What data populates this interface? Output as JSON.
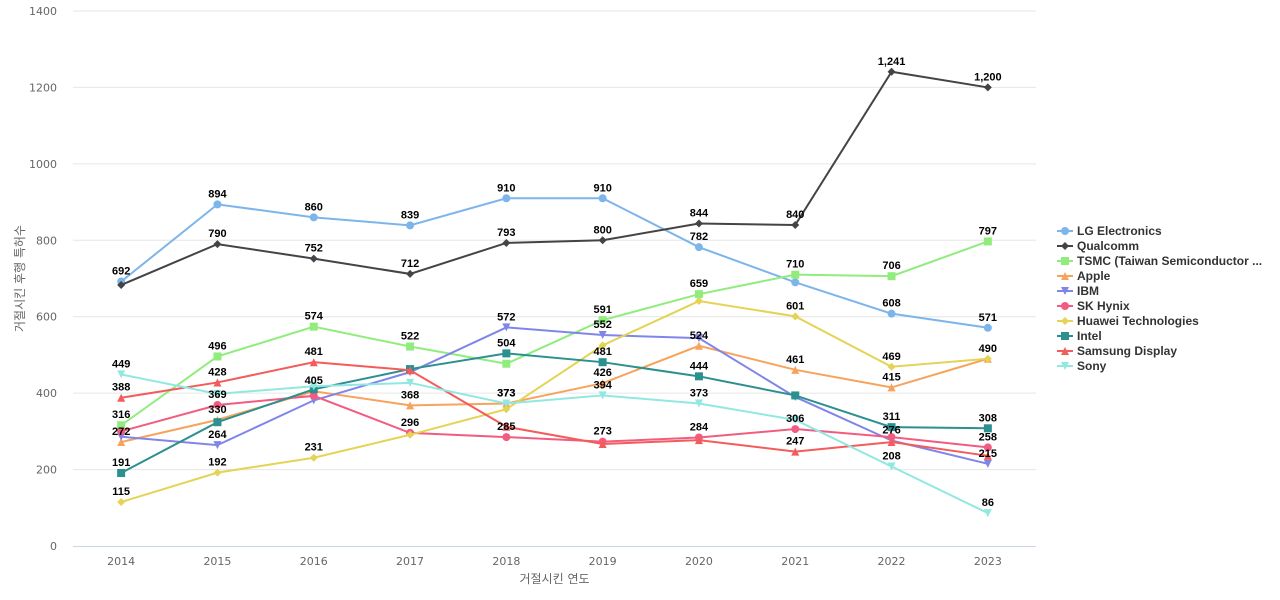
{
  "chart_data": {
    "type": "line",
    "xlabel": "거절시킨 연도",
    "ylabel": "거절시킨 후행 특허수",
    "ylim": [
      0,
      1400
    ],
    "yticks": [
      0,
      200,
      400,
      600,
      800,
      1000,
      1200,
      1400
    ],
    "categories": [
      "2014",
      "2015",
      "2016",
      "2017",
      "2018",
      "2019",
      "2020",
      "2021",
      "2022",
      "2023"
    ],
    "grid": true,
    "legend_position": "right",
    "series": [
      {
        "name": "LG Electronics",
        "color": "#7cb5ec",
        "marker": "circle",
        "values": [
          692,
          894,
          860,
          839,
          910,
          910,
          782,
          690,
          608,
          571
        ],
        "labels": [
          true,
          true,
          true,
          true,
          true,
          true,
          true,
          false,
          true,
          true
        ]
      },
      {
        "name": "Qualcomm",
        "color": "#434348",
        "marker": "diamond",
        "values": [
          683,
          790,
          752,
          712,
          793,
          800,
          844,
          840,
          1241,
          1200
        ],
        "labels": [
          false,
          true,
          true,
          true,
          true,
          true,
          true,
          true,
          true,
          true
        ]
      },
      {
        "name": "TSMC (Taiwan Semiconductor ...",
        "color": "#90ed7d",
        "marker": "square",
        "values": [
          316,
          496,
          574,
          522,
          477,
          591,
          659,
          710,
          706,
          797
        ],
        "labels": [
          true,
          true,
          true,
          true,
          false,
          true,
          true,
          true,
          true,
          true
        ]
      },
      {
        "name": "Apple",
        "color": "#f7a35c",
        "marker": "triangle",
        "values": [
          272,
          330,
          405,
          368,
          373,
          426,
          524,
          461,
          415,
          490
        ],
        "labels": [
          true,
          true,
          true,
          true,
          true,
          true,
          true,
          true,
          true,
          false
        ]
      },
      {
        "name": "IBM",
        "color": "#8085e9",
        "marker": "triangle-down",
        "values": [
          286,
          264,
          381,
          455,
          572,
          552,
          544,
          390,
          276,
          215
        ],
        "labels": [
          false,
          true,
          false,
          false,
          true,
          true,
          false,
          false,
          true,
          true
        ]
      },
      {
        "name": "SK Hynix",
        "color": "#f15c80",
        "marker": "circle",
        "values": [
          300,
          369,
          393,
          296,
          285,
          273,
          284,
          306,
          285,
          258
        ],
        "labels": [
          false,
          true,
          false,
          true,
          true,
          true,
          true,
          true,
          false,
          true
        ]
      },
      {
        "name": "Huawei Technologies",
        "color": "#e4d354",
        "marker": "diamond",
        "values": [
          115,
          192,
          231,
          291,
          358,
          525,
          641,
          601,
          469,
          490
        ],
        "labels": [
          true,
          true,
          true,
          false,
          false,
          false,
          false,
          true,
          true,
          true
        ]
      },
      {
        "name": "Intel",
        "color": "#2b908f",
        "marker": "square",
        "values": [
          191,
          324,
          410,
          463,
          504,
          481,
          444,
          394,
          311,
          308
        ],
        "labels": [
          true,
          false,
          false,
          false,
          true,
          true,
          true,
          false,
          true,
          true
        ]
      },
      {
        "name": "Samsung Display",
        "color": "#f45b5b",
        "marker": "triangle",
        "values": [
          388,
          428,
          481,
          460,
          312,
          267,
          277,
          247,
          272,
          236
        ],
        "labels": [
          true,
          true,
          true,
          false,
          false,
          false,
          false,
          true,
          false,
          false
        ]
      },
      {
        "name": "Sony",
        "color": "#91e8e1",
        "marker": "triangle-down",
        "values": [
          449,
          398,
          418,
          427,
          373,
          394,
          373,
          330,
          208,
          86
        ],
        "labels": [
          true,
          false,
          false,
          false,
          true,
          true,
          true,
          false,
          true,
          true
        ]
      }
    ]
  }
}
